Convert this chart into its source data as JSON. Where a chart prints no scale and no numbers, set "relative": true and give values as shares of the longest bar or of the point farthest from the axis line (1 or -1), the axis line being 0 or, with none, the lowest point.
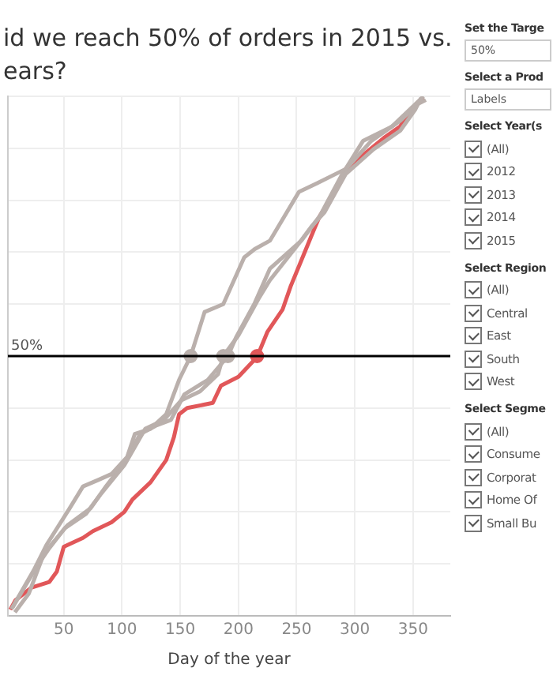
{
  "chart_data": {
    "type": "line",
    "title": "id we reach 50% of orders in 2015 vs.\nears?",
    "xlabel": "Day of the year",
    "relative": true,
    "xlim": [
      2,
      382
    ],
    "xticks": [
      50,
      100,
      150,
      200,
      250,
      300,
      350
    ],
    "grid": true,
    "legend": false,
    "marker": "none",
    "line_style": "solid",
    "ref_lines": [
      {
        "axis": "y",
        "value": 0.5,
        "label": "50%",
        "color": "#000000"
      }
    ],
    "series": [
      {
        "color": "#bab0ac",
        "x": [
          5,
          24,
          35,
          55,
          66.5,
          80,
          91,
          104.5,
          111,
          124.5,
          138,
          149,
          159,
          171,
          187,
          205,
          214,
          227,
          252,
          267,
          292,
          307,
          332,
          359
        ],
        "values": [
          0.013,
          0.087,
          0.136,
          0.207,
          0.249,
          0.262,
          0.273,
          0.306,
          0.35,
          0.36,
          0.388,
          0.454,
          0.5,
          0.585,
          0.6,
          0.69,
          0.706,
          0.722,
          0.816,
          0.832,
          0.86,
          0.914,
          0.942,
          1
        ]
      },
      {
        "color": "#bab0ac",
        "x": [
          6,
          26,
          37.5,
          51,
          69,
          82,
          102,
          120,
          136,
          151,
          167,
          182.5,
          187,
          200,
          218,
          227,
          252,
          263,
          274,
          292,
          316,
          339,
          352,
          357
        ],
        "values": [
          0.016,
          0.092,
          0.13,
          0.169,
          0.196,
          0.235,
          0.29,
          0.36,
          0.377,
          0.415,
          0.432,
          0.465,
          0.5,
          0.54,
          0.613,
          0.646,
          0.717,
          0.75,
          0.777,
          0.85,
          0.898,
          0.934,
          0.975,
          0.997
        ]
      },
      {
        "color": "#bab0ac",
        "x": [
          8,
          20,
          33,
          53,
          73,
          86.5,
          102,
          115.6,
          129,
          142,
          153.5,
          173.6,
          191,
          198,
          214,
          227,
          254,
          270,
          290,
          314,
          339,
          354,
          361
        ],
        "values": [
          0.007,
          0.043,
          0.12,
          0.174,
          0.207,
          0.25,
          0.295,
          0.35,
          0.366,
          0.377,
          0.426,
          0.454,
          0.5,
          0.536,
          0.602,
          0.668,
          0.722,
          0.77,
          0.854,
          0.914,
          0.953,
          0.985,
          0.993
        ]
      },
      {
        "color": "#e15759",
        "x": [
          4,
          8.5,
          22,
          37.5,
          44,
          50,
          66.5,
          75,
          91,
          102,
          109,
          124.5,
          138,
          144.6,
          149,
          156,
          178,
          185,
          200,
          216,
          225,
          238,
          245,
          254,
          265,
          270,
          283,
          292,
          307,
          325,
          339,
          348,
          359
        ],
        "values": [
          0.012,
          0.03,
          0.054,
          0.065,
          0.085,
          0.133,
          0.15,
          0.163,
          0.18,
          0.2,
          0.224,
          0.257,
          0.3,
          0.344,
          0.388,
          0.4,
          0.41,
          0.443,
          0.46,
          0.498,
          0.547,
          0.59,
          0.635,
          0.684,
          0.744,
          0.77,
          0.816,
          0.86,
          0.887,
          0.92,
          0.942,
          0.975,
          0.997
        ]
      },
      {
        "type": "scatter",
        "marker": "circle",
        "x": [
          159,
          187,
          191,
          216
        ],
        "values": [
          0.5,
          0.5,
          0.5,
          0.5
        ],
        "colors": [
          "#bab0ac",
          "#bab0ac",
          "#bab0ac",
          "#e15759"
        ]
      }
    ],
    "annotations": [
      "Set the Targe",
      "50%",
      "Select a Prod",
      "Labels",
      "Select Year(s",
      "(All)",
      "2012",
      "2013",
      "2014",
      "2015",
      "Select Region",
      "(All)",
      "Central",
      "East",
      "South",
      "West",
      "Select Segme",
      "(All)",
      "Consume",
      "Corporat",
      "Home Of",
      "Small Bu"
    ]
  }
}
